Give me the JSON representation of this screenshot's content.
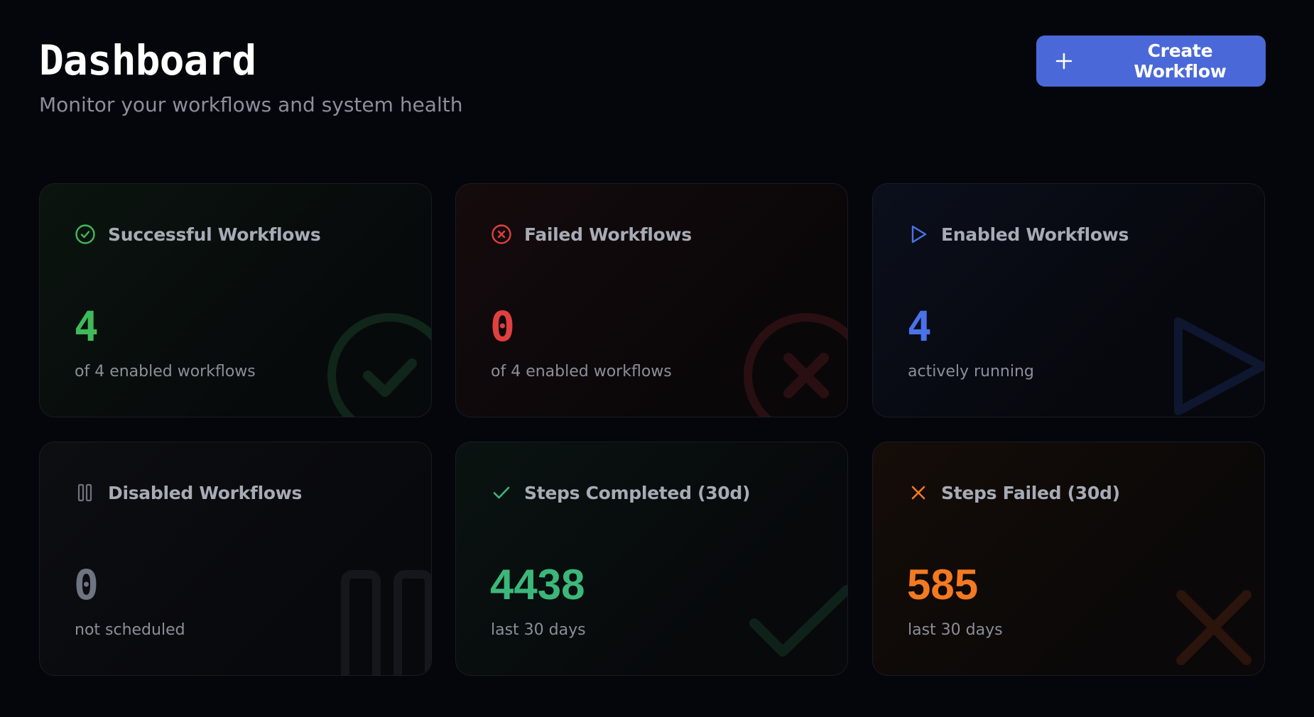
{
  "header": {
    "title": "Dashboard",
    "subtitle": "Monitor your workflows and system health"
  },
  "actions": {
    "create_label": "Create Workflow"
  },
  "cards": [
    {
      "title": "Successful Workflows",
      "value": "4",
      "subtitle": "of 4 enabled workflows",
      "icon": "check-circle-icon",
      "color": "#3fba5a"
    },
    {
      "title": "Failed Workflows",
      "value": "0",
      "subtitle": "of 4 enabled workflows",
      "icon": "x-circle-icon",
      "color": "#e0403f"
    },
    {
      "title": "Enabled Workflows",
      "value": "4",
      "subtitle": "actively running",
      "icon": "play-icon",
      "color": "#4a72ea"
    },
    {
      "title": "Disabled Workflows",
      "value": "0",
      "subtitle": "not scheduled",
      "icon": "pause-icon",
      "color": "#6f7482"
    },
    {
      "title": "Steps Completed (30d)",
      "value": "4438",
      "subtitle": "last 30 days",
      "icon": "check-icon",
      "color": "#3cb77a"
    },
    {
      "title": "Steps Failed (30d)",
      "value": "585",
      "subtitle": "last 30 days",
      "icon": "x-icon",
      "color": "#f47a20"
    }
  ]
}
